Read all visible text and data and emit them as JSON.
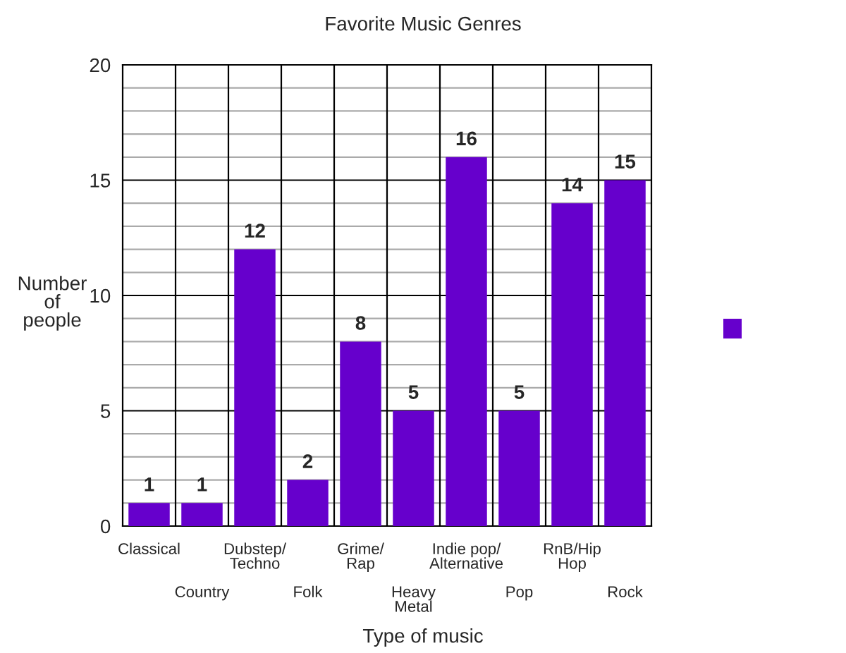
{
  "chart_data": {
    "type": "bar",
    "title": "Favorite Music Genres",
    "xlabel": "Type of music",
    "ylabel": "Number\nof\npeople",
    "categories": [
      "Classical",
      "Country",
      "Dubstep/\nTechno",
      "Folk",
      "Grime/\nRap",
      "Heavy\nMetal",
      "Indie pop/\nAlternative",
      "Pop",
      "RnB/Hip\nHop",
      "Rock"
    ],
    "values": [
      1,
      1,
      12,
      2,
      8,
      5,
      16,
      5,
      14,
      15
    ],
    "color": "#6600cc",
    "ylim": [
      0,
      20
    ],
    "yticks": [
      0,
      {
        "value": 1,
        "label": null
      },
      {
        "value": 2,
        "label": null
      },
      {
        "value": 3,
        "label": null
      },
      {
        "value": 4,
        "label": null
      },
      5,
      {
        "value": 6,
        "label": null
      },
      {
        "value": 7,
        "label": null
      },
      {
        "value": 8,
        "label": null
      },
      {
        "value": 9,
        "label": null
      },
      10,
      {
        "value": 11,
        "label": null
      },
      {
        "value": 12,
        "label": null
      },
      {
        "value": 13,
        "label": null
      },
      {
        "value": 14,
        "label": null
      },
      15,
      {
        "value": 16,
        "label": null
      },
      {
        "value": 17,
        "label": null
      },
      {
        "value": 18,
        "label": null
      },
      {
        "value": 19,
        "label": null
      },
      20
    ],
    "grid": true,
    "data_labels": true
  }
}
